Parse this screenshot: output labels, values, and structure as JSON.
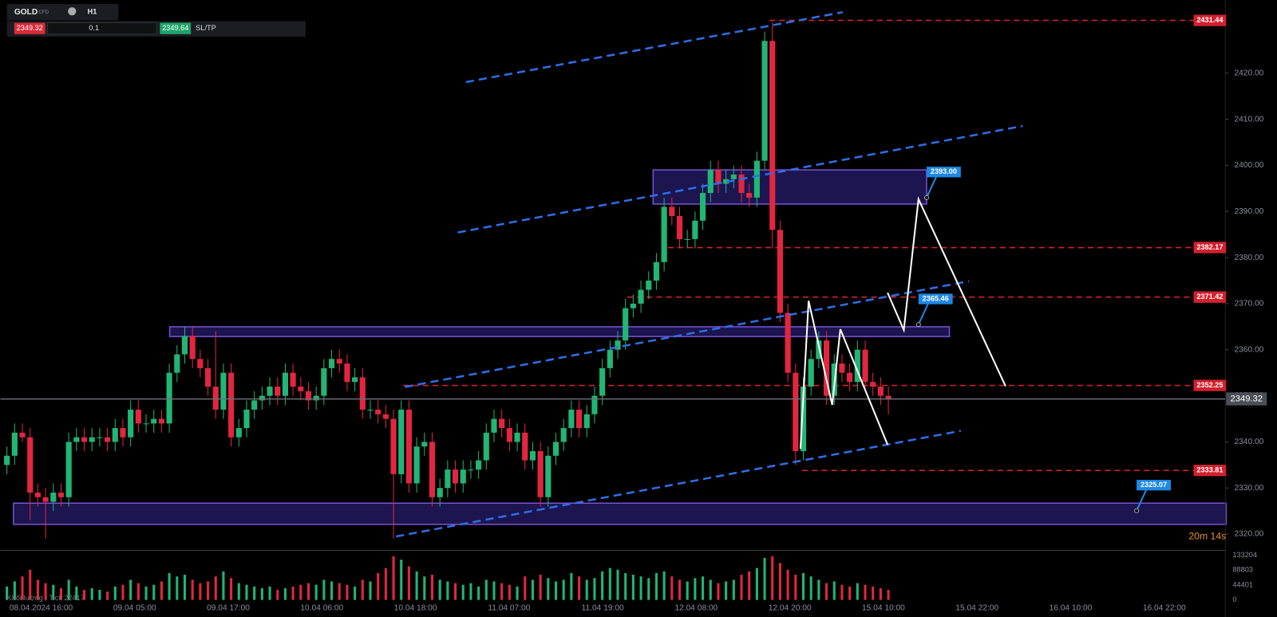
{
  "toolbar": {
    "symbol": "GOLD",
    "kind": "CFD",
    "timeframe": "H1",
    "bid": "2349.32",
    "volume": "0.1",
    "ask": "2349.64",
    "sltp": "SL/TP"
  },
  "volume_caption": "Khối lượng , Tick 22417",
  "countdown": "20m 14s",
  "chart_data": {
    "type": "candlestick",
    "colors": {
      "up": "#22b573",
      "down": "#e3263f"
    },
    "ylim": [
      2316.83,
      2435.87
    ],
    "yticks": [
      {
        "value": 2320,
        "label": "2320.00"
      },
      {
        "value": 2330,
        "label": "2330.00"
      },
      {
        "value": 2340,
        "label": "2340.00"
      },
      {
        "value": 2350,
        "label": "2350.00"
      },
      {
        "value": 2360,
        "label": "2360.00"
      },
      {
        "value": 2370,
        "label": "2370.00"
      },
      {
        "value": 2380,
        "label": "2380.00"
      },
      {
        "value": 2390,
        "label": "2390.00"
      },
      {
        "value": 2400,
        "label": "2400.00"
      },
      {
        "value": 2410,
        "label": "2410.00"
      },
      {
        "value": 2420,
        "label": "2420.00"
      }
    ],
    "xtick_labels": [
      "08.04.2024 16:00",
      "09.04 05:00",
      "09.04 17:00",
      "10.04 06:00",
      "10.04 18:00",
      "11.04 07:00",
      "11.04 19:00",
      "12.04 08:00",
      "12.04 20:00",
      "15.04 10:00",
      "15.04 22:00",
      "16.04 10:00",
      "16.04 22:00"
    ],
    "open": [
      2335,
      2337,
      2342,
      2341,
      2329,
      2328,
      2327,
      2329,
      2328,
      2340,
      2341,
      2340,
      2341,
      2341,
      2340,
      2343,
      2341,
      2347,
      2344,
      2344,
      2345,
      2344,
      2355,
      2359,
      2363,
      2358,
      2356,
      2352,
      2347,
      2355,
      2341,
      2343,
      2347,
      2349,
      2350,
      2352,
      2350,
      2355,
      2352,
      2351,
      2349,
      2350,
      2356,
      2358,
      2357,
      2353,
      2354,
      2347,
      2347,
      2346,
      2345,
      2333,
      2347,
      2331,
      2339,
      2340,
      2328,
      2330,
      2334,
      2331,
      2334,
      2334,
      2336,
      2342,
      2345,
      2343,
      2340,
      2342,
      2336,
      2338,
      2328,
      2337,
      2340,
      2343,
      2347,
      2343,
      2346,
      2350,
      2356,
      2360,
      2362,
      2369,
      2370,
      2373,
      2375,
      2379,
      2391,
      2389,
      2384,
      2384,
      2388,
      2394,
      2399,
      2396,
      2397,
      2398,
      2394,
      2393,
      2401,
      2427,
      2386,
      2368,
      2355,
      2338,
      2352,
      2358,
      2362,
      2350,
      2357,
      2355,
      2353,
      2360,
      2353,
      2352,
      2350
    ],
    "high": [
      2339,
      2344,
      2344,
      2343,
      2331,
      2330,
      2331,
      2331,
      2342,
      2343,
      2343,
      2343,
      2343,
      2343,
      2345,
      2345,
      2349,
      2349,
      2346,
      2347,
      2347,
      2357,
      2361,
      2365,
      2365,
      2360,
      2358,
      2364,
      2357,
      2357,
      2345,
      2349,
      2351,
      2352,
      2354,
      2354,
      2357,
      2357,
      2354,
      2353,
      2352,
      2358,
      2360,
      2360,
      2359,
      2356,
      2356,
      2349,
      2349,
      2348,
      2347,
      2349,
      2349,
      2341,
      2342,
      2342,
      2332,
      2336,
      2336,
      2336,
      2336,
      2338,
      2344,
      2347,
      2347,
      2345,
      2344,
      2344,
      2340,
      2340,
      2339,
      2342,
      2345,
      2349,
      2349,
      2348,
      2352,
      2358,
      2362,
      2364,
      2371,
      2372,
      2375,
      2377,
      2381,
      2393,
      2393,
      2391,
      2386,
      2390,
      2396,
      2401,
      2401,
      2399,
      2400,
      2400,
      2396,
      2403,
      2429,
      2431,
      2388,
      2370,
      2357,
      2354,
      2360,
      2364,
      2364,
      2359,
      2359,
      2357,
      2362,
      2362,
      2355,
      2354,
      2352
    ],
    "low": [
      2333,
      2335,
      2340,
      2323,
      2326,
      2319,
      2325,
      2326,
      2326,
      2338,
      2338,
      2338,
      2339,
      2338,
      2338,
      2339,
      2339,
      2342,
      2342,
      2342,
      2342,
      2342,
      2353,
      2357,
      2356,
      2354,
      2350,
      2345,
      2345,
      2339,
      2339,
      2341,
      2345,
      2347,
      2348,
      2348,
      2348,
      2350,
      2349,
      2347,
      2347,
      2348,
      2354,
      2355,
      2351,
      2351,
      2345,
      2345,
      2344,
      2343,
      2319,
      2331,
      2329,
      2329,
      2337,
      2326,
      2326,
      2328,
      2329,
      2329,
      2332,
      2332,
      2334,
      2340,
      2341,
      2338,
      2338,
      2334,
      2334,
      2326,
      2326,
      2335,
      2338,
      2341,
      2341,
      2341,
      2344,
      2348,
      2354,
      2358,
      2360,
      2367,
      2368,
      2371,
      2373,
      2377,
      2387,
      2382,
      2382,
      2382,
      2386,
      2392,
      2394,
      2394,
      2395,
      2392,
      2391,
      2391,
      2399,
      2382,
      2366,
      2353,
      2335,
      2336,
      2350,
      2356,
      2348,
      2348,
      2353,
      2351,
      2351,
      2351,
      2350,
      2348,
      2346
    ],
    "close": [
      2337,
      2342,
      2341,
      2329,
      2328,
      2327,
      2329,
      2328,
      2340,
      2341,
      2340,
      2341,
      2341,
      2340,
      2343,
      2341,
      2347,
      2344,
      2344,
      2345,
      2344,
      2355,
      2359,
      2363,
      2358,
      2356,
      2352,
      2347,
      2355,
      2341,
      2343,
      2347,
      2349,
      2350,
      2352,
      2350,
      2355,
      2352,
      2351,
      2349,
      2350,
      2356,
      2358,
      2357,
      2353,
      2354,
      2347,
      2347,
      2346,
      2345,
      2333,
      2347,
      2331,
      2339,
      2340,
      2328,
      2330,
      2334,
      2331,
      2334,
      2334,
      2336,
      2342,
      2345,
      2343,
      2340,
      2342,
      2336,
      2338,
      2328,
      2337,
      2340,
      2343,
      2347,
      2343,
      2346,
      2350,
      2356,
      2360,
      2362,
      2369,
      2370,
      2373,
      2375,
      2379,
      2391,
      2389,
      2384,
      2384,
      2388,
      2394,
      2399,
      2396,
      2397,
      2398,
      2394,
      2393,
      2401,
      2427,
      2386,
      2368,
      2355,
      2338,
      2352,
      2358,
      2362,
      2350,
      2357,
      2355,
      2353,
      2360,
      2353,
      2352,
      2350,
      2349.32
    ],
    "volume": [
      40000,
      55000,
      70000,
      90000,
      60000,
      50000,
      45000,
      35000,
      60000,
      40000,
      30000,
      35000,
      30000,
      25000,
      40000,
      45000,
      60000,
      50000,
      40000,
      45000,
      55000,
      80000,
      70000,
      75000,
      60000,
      50000,
      55000,
      70000,
      85000,
      65000,
      50000,
      45000,
      40000,
      35000,
      40000,
      30000,
      35000,
      40000,
      45000,
      50000,
      45000,
      60000,
      55000,
      50000,
      45000,
      40000,
      60000,
      55000,
      80000,
      95000,
      130000,
      120000,
      100000,
      85000,
      70000,
      75000,
      60000,
      55000,
      50000,
      45000,
      50000,
      40000,
      60000,
      55000,
      50000,
      45000,
      40000,
      70000,
      60000,
      75000,
      65000,
      55000,
      60000,
      80000,
      70000,
      60000,
      65000,
      85000,
      95000,
      90000,
      80000,
      75000,
      70000,
      65000,
      80000,
      85000,
      70000,
      60000,
      55000,
      65000,
      70000,
      60000,
      50000,
      55000,
      60000,
      75000,
      85000,
      95000,
      125000,
      130000,
      110000,
      90000,
      75000,
      80000,
      70000,
      60000,
      50000,
      55000,
      45000,
      40000,
      50000,
      45000,
      40000,
      35000,
      30000
    ],
    "volume_lim": [
      0,
      133204
    ],
    "volume_ticks": [
      133204,
      88803,
      44401,
      0
    ],
    "levels": [
      2431.44,
      2382.17,
      2371.42,
      2352.25,
      2333.81
    ],
    "current_price": 2349.32,
    "callouts": [
      {
        "value": 2393,
        "label": "2393.00"
      },
      {
        "value": 2365.46,
        "label": "2365.46"
      },
      {
        "value": 2325.07,
        "label": "2325.07"
      }
    ]
  }
}
